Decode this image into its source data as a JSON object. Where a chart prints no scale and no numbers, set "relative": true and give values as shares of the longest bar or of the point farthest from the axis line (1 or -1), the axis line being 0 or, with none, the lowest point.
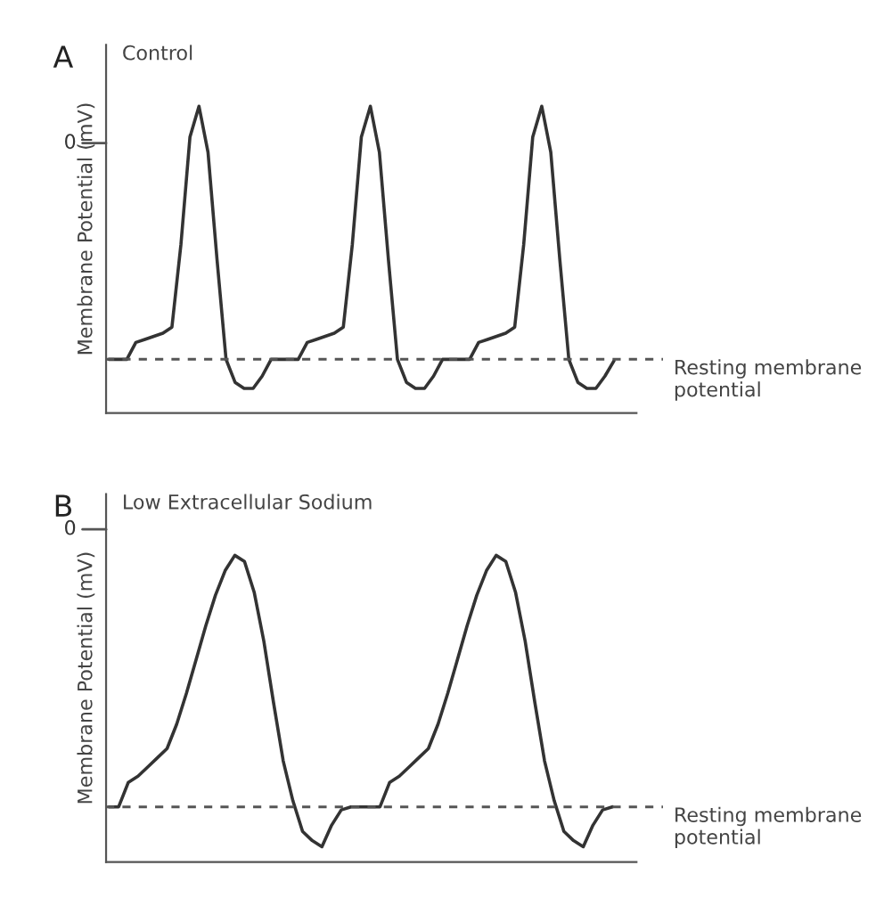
{
  "chart_data": [
    {
      "type": "line",
      "title": "A",
      "subtitle": "Control",
      "ylabel": "Membrane Potential (mV)",
      "relative": true,
      "categories": [
        null,
        null,
        null,
        null,
        null,
        null,
        null,
        null,
        null,
        null,
        null,
        null,
        null,
        null,
        null,
        null,
        null,
        null,
        null,
        null,
        null,
        null,
        null,
        null,
        null,
        null,
        null,
        null,
        null,
        null,
        null,
        null,
        null,
        null,
        null,
        null,
        null,
        null,
        null,
        null,
        null,
        null,
        null,
        null,
        null,
        null,
        null,
        null,
        null,
        null,
        null,
        null,
        null,
        null,
        null,
        null,
        null
      ],
      "series": [
        {
          "color": "#333333",
          "values": [
            0.175,
            0.175,
            0.175,
            0.23,
            0.24,
            0.25,
            0.26,
            0.28,
            0.55,
            0.9,
            1.0,
            0.85,
            0.5,
            0.175,
            0.1,
            0.08,
            0.08,
            0.12,
            0.175,
            0.175,
            0.175,
            0.175,
            0.23,
            0.24,
            0.25,
            0.26,
            0.28,
            0.55,
            0.9,
            1.0,
            0.85,
            0.5,
            0.175,
            0.1,
            0.08,
            0.08,
            0.12,
            0.175,
            0.175,
            0.175,
            0.175,
            0.23,
            0.24,
            0.25,
            0.26,
            0.28,
            0.55,
            0.9,
            1.0,
            0.85,
            0.5,
            0.175,
            0.1,
            0.08,
            0.08,
            0.12,
            0.17
          ]
        }
      ],
      "ref_lines": [
        {
          "axis": "y",
          "value": 0.175,
          "label": "Resting membrane potential",
          "color": "#555555",
          "line_style": "dashed"
        }
      ],
      "annotations": [
        "0"
      ]
    },
    {
      "type": "line",
      "title": "B",
      "subtitle": "Low Extracellular Sodium",
      "ylabel": "Membrane Potential (mV)",
      "relative": true,
      "categories": [
        null,
        null,
        null,
        null,
        null,
        null,
        null,
        null,
        null,
        null,
        null,
        null,
        null,
        null,
        null,
        null,
        null,
        null,
        null,
        null,
        null,
        null,
        null,
        null,
        null,
        null,
        null,
        null,
        null,
        null,
        null,
        null,
        null,
        null,
        null,
        null,
        null,
        null,
        null,
        null,
        null,
        null,
        null,
        null,
        null,
        null,
        null,
        null,
        null,
        null,
        null,
        null,
        null
      ],
      "series": [
        {
          "color": "#333333",
          "values": [
            0.18,
            0.18,
            0.26,
            0.28,
            0.31,
            0.34,
            0.37,
            0.45,
            0.55,
            0.66,
            0.77,
            0.87,
            0.95,
            1.0,
            0.98,
            0.88,
            0.72,
            0.52,
            0.33,
            0.2,
            0.1,
            0.07,
            0.05,
            0.12,
            0.17,
            0.18,
            0.18,
            0.18,
            0.18,
            0.26,
            0.28,
            0.31,
            0.34,
            0.37,
            0.45,
            0.55,
            0.66,
            0.77,
            0.87,
            0.95,
            1.0,
            0.98,
            0.88,
            0.72,
            0.52,
            0.33,
            0.2,
            0.1,
            0.07,
            0.05,
            0.12,
            0.17,
            0.18
          ]
        }
      ],
      "ref_lines": [
        {
          "axis": "y",
          "value": 0.18,
          "label": "Resting membrane potential",
          "color": "#555555",
          "line_style": "dashed"
        }
      ],
      "annotations": [
        "0"
      ]
    }
  ]
}
